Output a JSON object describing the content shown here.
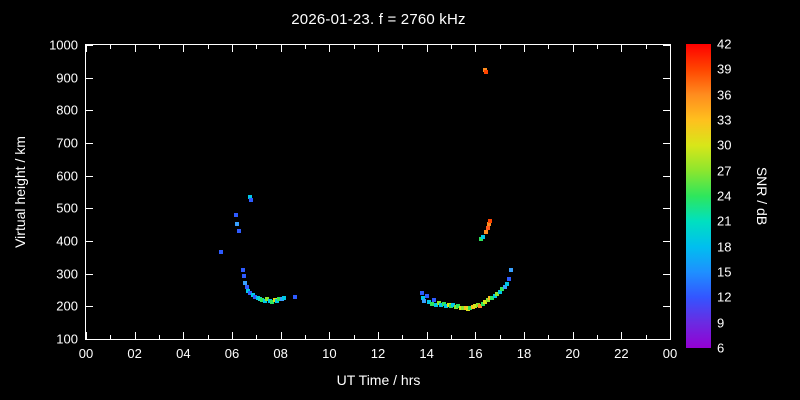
{
  "title": "2026-01-23. f = 2760 kHz",
  "axes": {
    "x": {
      "label": "UT Time / hrs",
      "ticks": [
        "00",
        "02",
        "04",
        "06",
        "08",
        "10",
        "12",
        "14",
        "16",
        "18",
        "20",
        "22",
        "00"
      ],
      "minor_hours": [
        1,
        3,
        5,
        7,
        9,
        11,
        13,
        15,
        17,
        19,
        21,
        23
      ],
      "min": 0,
      "max": 24
    },
    "y": {
      "label": "Virtual height / km",
      "ticks": [
        100,
        200,
        300,
        400,
        500,
        600,
        700,
        800,
        900,
        1000
      ],
      "min": 100,
      "max": 1000
    }
  },
  "colorbar": {
    "label": "SNR / dB",
    "tick_labels": [
      42,
      39,
      36,
      33,
      30,
      27,
      24,
      21,
      18,
      15,
      12,
      9,
      6
    ],
    "min": 6,
    "max": 42,
    "stops": [
      {
        "v": 6,
        "c": "#9400d3"
      },
      {
        "v": 9,
        "c": "#6a2be2"
      },
      {
        "v": 12,
        "c": "#3355ff"
      },
      {
        "v": 15,
        "c": "#1e90ff"
      },
      {
        "v": 18,
        "c": "#00bfef"
      },
      {
        "v": 21,
        "c": "#00e0c0"
      },
      {
        "v": 24,
        "c": "#2ee65c"
      },
      {
        "v": 27,
        "c": "#8ce62e"
      },
      {
        "v": 30,
        "c": "#d8e619"
      },
      {
        "v": 33,
        "c": "#ffc01e"
      },
      {
        "v": 36,
        "c": "#ff8c1e"
      },
      {
        "v": 39,
        "c": "#ff4500"
      },
      {
        "v": 42,
        "c": "#ff0000"
      }
    ]
  },
  "chart_data": {
    "type": "scatter",
    "title": "2026-01-23. f = 2760 kHz",
    "xlabel": "UT Time / hrs",
    "ylabel": "Virtual height / km",
    "xlim": [
      0,
      24
    ],
    "ylim": [
      100,
      1000
    ],
    "grid": false,
    "color_scale": "SNR / dB (6-42, rainbow violet-to-red)",
    "points_format": "[ut_hours, virtual_height_km, color_hex]",
    "points": [
      [
        5.55,
        365,
        "#2e5bff"
      ],
      [
        6.15,
        480,
        "#2e5bff"
      ],
      [
        6.2,
        452,
        "#38a0ff"
      ],
      [
        6.28,
        430,
        "#2e5bff"
      ],
      [
        6.72,
        535,
        "#00c8e6"
      ],
      [
        6.78,
        525,
        "#2e5bff"
      ],
      [
        6.45,
        312,
        "#2e5bff"
      ],
      [
        6.5,
        292,
        "#2e5bff"
      ],
      [
        6.55,
        272,
        "#38a0ff"
      ],
      [
        6.6,
        258,
        "#2e5bff"
      ],
      [
        6.65,
        248,
        "#00c8e6"
      ],
      [
        6.75,
        240,
        "#2e5bff"
      ],
      [
        6.85,
        234,
        "#00c8e6"
      ],
      [
        6.95,
        229,
        "#2e5bff"
      ],
      [
        7.05,
        225,
        "#00c8e6"
      ],
      [
        7.15,
        221,
        "#19d2c8"
      ],
      [
        7.25,
        219,
        "#2ee65c"
      ],
      [
        7.35,
        217,
        "#00c8e6"
      ],
      [
        7.45,
        221,
        "#8ce62e"
      ],
      [
        7.55,
        215,
        "#00c8e6"
      ],
      [
        7.65,
        213,
        "#2ee65c"
      ],
      [
        7.75,
        219,
        "#d8e619"
      ],
      [
        7.85,
        217,
        "#00c8e6"
      ],
      [
        7.95,
        223,
        "#2ee65c"
      ],
      [
        8.05,
        221,
        "#38a0ff"
      ],
      [
        8.15,
        225,
        "#00c8e6"
      ],
      [
        8.6,
        228,
        "#2e5bff"
      ],
      [
        13.8,
        240,
        "#2e5bff"
      ],
      [
        13.83,
        227,
        "#00c8e6"
      ],
      [
        13.9,
        217,
        "#38a0ff"
      ],
      [
        14.0,
        231,
        "#2e5bff"
      ],
      [
        14.1,
        213,
        "#00c8e6"
      ],
      [
        14.2,
        208,
        "#2ee65c"
      ],
      [
        14.3,
        220,
        "#2e5bff"
      ],
      [
        14.4,
        205,
        "#00c8e6"
      ],
      [
        14.5,
        210,
        "#8ce62e"
      ],
      [
        14.6,
        204,
        "#00c8e6"
      ],
      [
        14.7,
        207,
        "#2ee65c"
      ],
      [
        14.8,
        202,
        "#00c8e6"
      ],
      [
        14.9,
        205,
        "#d8e619"
      ],
      [
        15.0,
        200,
        "#2ee65c"
      ],
      [
        15.1,
        203,
        "#00c8e6"
      ],
      [
        15.2,
        198,
        "#8ce62e"
      ],
      [
        15.3,
        200,
        "#2ee65c"
      ],
      [
        15.4,
        196,
        "#d8e619"
      ],
      [
        15.5,
        194,
        "#8ce62e"
      ],
      [
        15.6,
        196,
        "#ffc01e"
      ],
      [
        15.7,
        193,
        "#d8e619"
      ],
      [
        15.8,
        196,
        "#2ee65c"
      ],
      [
        15.9,
        198,
        "#ffc01e"
      ],
      [
        16.0,
        200,
        "#d8e619"
      ],
      [
        16.1,
        204,
        "#8ce62e"
      ],
      [
        16.2,
        202,
        "#ff8c1e"
      ],
      [
        16.3,
        208,
        "#2ee65c"
      ],
      [
        16.4,
        214,
        "#d8e619"
      ],
      [
        16.5,
        220,
        "#8ce62e"
      ],
      [
        16.6,
        226,
        "#ffc01e"
      ],
      [
        16.7,
        224,
        "#2ee65c"
      ],
      [
        16.8,
        232,
        "#00c8e6"
      ],
      [
        16.9,
        238,
        "#8ce62e"
      ],
      [
        17.0,
        244,
        "#00c8e6"
      ],
      [
        17.1,
        252,
        "#2ee65c"
      ],
      [
        17.2,
        258,
        "#38a0ff"
      ],
      [
        17.3,
        268,
        "#00c8e6"
      ],
      [
        17.4,
        285,
        "#2e5bff"
      ],
      [
        17.45,
        310,
        "#38a0ff"
      ],
      [
        16.25,
        405,
        "#2ee65c"
      ],
      [
        16.3,
        412,
        "#00c8e6"
      ],
      [
        16.45,
        428,
        "#ff8c1e"
      ],
      [
        16.5,
        440,
        "#ff5a1e"
      ],
      [
        16.55,
        452,
        "#ff8c1e"
      ],
      [
        16.6,
        462,
        "#ff4500"
      ],
      [
        16.38,
        922,
        "#ff8c1e"
      ],
      [
        16.45,
        918,
        "#ff4500"
      ]
    ]
  }
}
